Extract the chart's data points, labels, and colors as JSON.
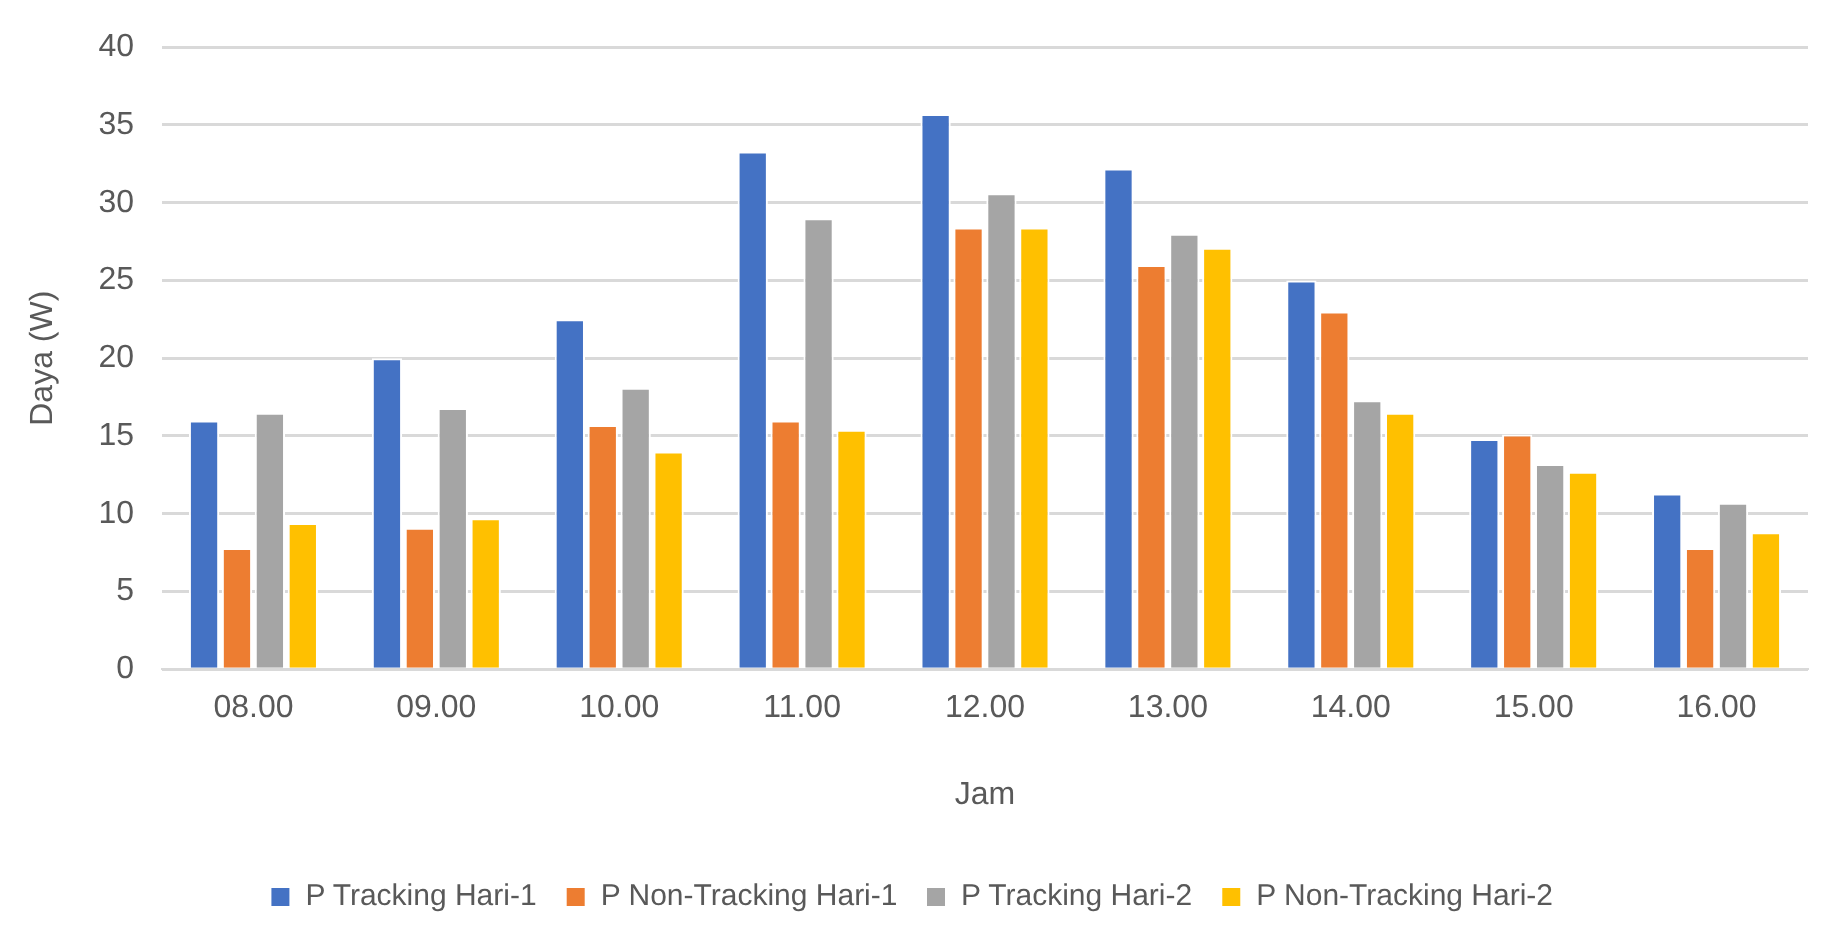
{
  "chart_data": {
    "type": "bar",
    "xlabel": "Jam",
    "ylabel": "Daya (W)",
    "categories": [
      "08.00",
      "09.00",
      "10.00",
      "11.00",
      "12.00",
      "13.00",
      "14.00",
      "15.00",
      "16.00"
    ],
    "series": [
      {
        "name": "P Tracking Hari-1",
        "color": "#4472c4",
        "values": [
          16,
          20,
          22.5,
          33.3,
          35.7,
          32.2,
          25,
          14.8,
          11.3
        ]
      },
      {
        "name": "P Non-Tracking Hari-1",
        "color": "#ed7d31",
        "values": [
          7.8,
          9.1,
          15.7,
          16,
          28.4,
          26,
          23,
          15.1,
          7.8
        ]
      },
      {
        "name": "P Tracking Hari-2",
        "color": "#a5a5a5",
        "values": [
          16.5,
          16.8,
          18.1,
          29,
          30.6,
          28,
          17.3,
          13.2,
          10.7
        ]
      },
      {
        "name": "P Non-Tracking Hari-2",
        "color": "#ffc000",
        "values": [
          9.4,
          9.7,
          14,
          15.4,
          28.4,
          27.1,
          16.5,
          12.7,
          8.8
        ]
      }
    ],
    "ylim": [
      0,
      40
    ],
    "yticks": [
      0,
      5,
      10,
      15,
      20,
      25,
      30,
      35,
      40
    ],
    "grid": "y",
    "legend": "bottom"
  }
}
